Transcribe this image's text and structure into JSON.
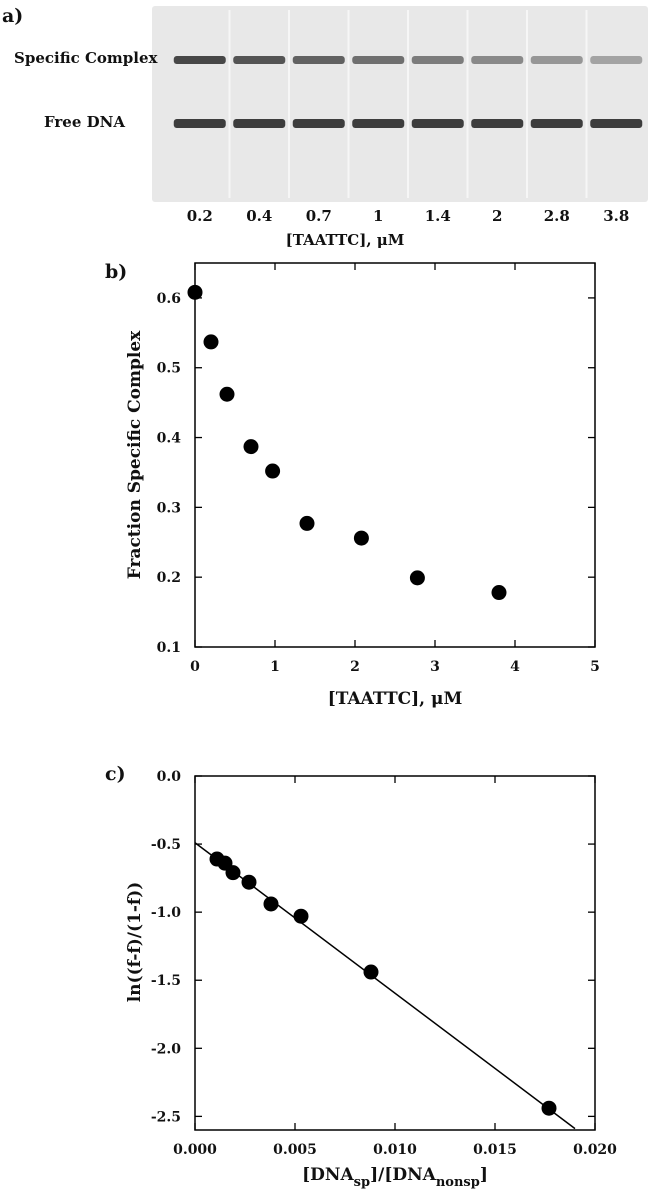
{
  "panel_a": {
    "letter": "a)",
    "band_labels": [
      "Specific Complex",
      "Free DNA"
    ],
    "lanes": [
      "0.2",
      "0.4",
      "0.7",
      "1",
      "1.4",
      "2",
      "2.8",
      "3.8"
    ],
    "xlabel": "[TAATTC], μM",
    "colors": {
      "gel_background": "#e8e8e8",
      "band": "#2a2a2a"
    }
  },
  "chart_data": [
    {
      "panel": "b)",
      "type": "scatter",
      "title": "",
      "xlabel": "[TAATTC], μM",
      "ylabel": "Fraction Specific Complex",
      "xlim": [
        0,
        5
      ],
      "ylim": [
        0.1,
        0.65
      ],
      "xticks": [
        0,
        1,
        2,
        3,
        4,
        5
      ],
      "xtick_labels": [
        "0",
        "1",
        "2",
        "3",
        "4",
        "5"
      ],
      "yticks": [
        0.1,
        0.2,
        0.3,
        0.4,
        0.5,
        0.6
      ],
      "ytick_labels": [
        "0.1",
        "0.2",
        "0.3",
        "0.4",
        "0.5",
        "0.6"
      ],
      "grid": false,
      "series": [
        {
          "x": [
            0,
            0.2,
            0.4,
            0.7,
            0.97,
            1.4,
            2.08,
            2.78,
            3.8
          ],
          "y": [
            0.608,
            0.537,
            0.462,
            0.387,
            0.352,
            0.277,
            0.256,
            0.199,
            0.178
          ]
        }
      ]
    },
    {
      "panel": "c)",
      "type": "scatter",
      "title": "",
      "xlabel": "[DNA_sp]/[DNA_nonsp]",
      "ylabel": "ln((f-f)/(1-f))",
      "xlim": [
        0,
        0.02
      ],
      "ylim": [
        -2.6,
        0
      ],
      "xticks": [
        0,
        0.005,
        0.01,
        0.015,
        0.02
      ],
      "xtick_labels": [
        "0.000",
        "0.005",
        "0.010",
        "0.015",
        "0.020"
      ],
      "yticks": [
        0,
        -0.5,
        -1,
        -1.5,
        -2,
        -2.5
      ],
      "ytick_labels": [
        "0.0",
        "-0.5",
        "-1.0",
        "-1.5",
        "-2.0",
        "-2.5"
      ],
      "grid": false,
      "series": [
        {
          "x": [
            0.0011,
            0.0015,
            0.0019,
            0.0027,
            0.0038,
            0.0053,
            0.0088,
            0.0177
          ],
          "y": [
            -0.61,
            -0.64,
            -0.71,
            -0.78,
            -0.94,
            -1.03,
            -1.44,
            -2.44
          ]
        }
      ],
      "fit_line": {
        "x": [
          0,
          0.019
        ],
        "y": [
          -0.49,
          -2.59
        ]
      }
    }
  ]
}
